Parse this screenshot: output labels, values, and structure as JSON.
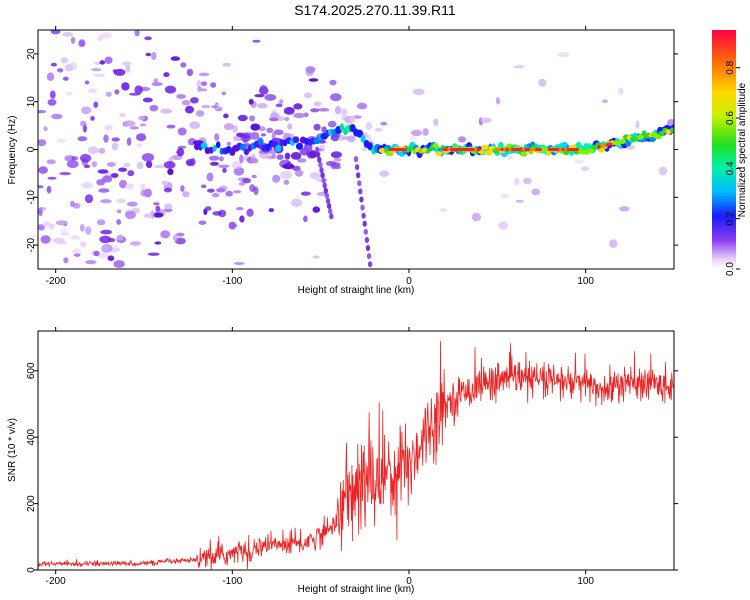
{
  "title": "S174.2025.270.11.39.R11",
  "chart_data": [
    {
      "type": "heatmap",
      "xlabel": "Height of straight line (km)",
      "ylabel": "Frequency (Hz)",
      "xlim": [
        -210,
        150
      ],
      "ylim": [
        -25,
        25
      ],
      "xticks": [
        "-200",
        "-100",
        "0",
        "100"
      ],
      "yticks": [
        "-20",
        "-10",
        "0",
        "10",
        "20"
      ],
      "colorbar": {
        "label": "Normalized spectral amplitude",
        "range": [
          0.0,
          0.95
        ],
        "ticks": [
          "0.0",
          "0.2",
          "0.4",
          "0.6",
          "0.8"
        ]
      },
      "trace": {
        "description_points": [
          [
            -210,
            0
          ],
          [
            -100,
            0
          ],
          [
            -50,
            2
          ],
          [
            -40,
            4
          ],
          [
            -30,
            4
          ],
          [
            -20,
            0
          ],
          [
            0,
            0
          ],
          [
            50,
            0
          ],
          [
            100,
            0
          ],
          [
            150,
            4
          ]
        ]
      }
    },
    {
      "type": "line",
      "xlabel": "Height of straight line (km)",
      "ylabel": "SNR (10 * v/v)",
      "xlim": [
        -210,
        150
      ],
      "ylim": [
        0,
        720
      ],
      "xticks": [
        "-200",
        "-100",
        "0",
        "100"
      ],
      "yticks": [
        "0",
        "200",
        "400",
        "600"
      ],
      "series": [
        {
          "name": "SNR",
          "color": "#ee2222",
          "envelope": [
            [
              -210,
              18
            ],
            [
              -150,
              20
            ],
            [
              -120,
              30
            ],
            [
              -100,
              50
            ],
            [
              -80,
              75
            ],
            [
              -60,
              80
            ],
            [
              -45,
              120
            ],
            [
              -35,
              220
            ],
            [
              -20,
              280
            ],
            [
              -10,
              300
            ],
            [
              0,
              320
            ],
            [
              10,
              420
            ],
            [
              20,
              500
            ],
            [
              40,
              560
            ],
            [
              60,
              580
            ],
            [
              80,
              570
            ],
            [
              100,
              560
            ],
            [
              110,
              540
            ],
            [
              120,
              560
            ],
            [
              140,
              560
            ],
            [
              150,
              560
            ]
          ]
        }
      ]
    }
  ]
}
